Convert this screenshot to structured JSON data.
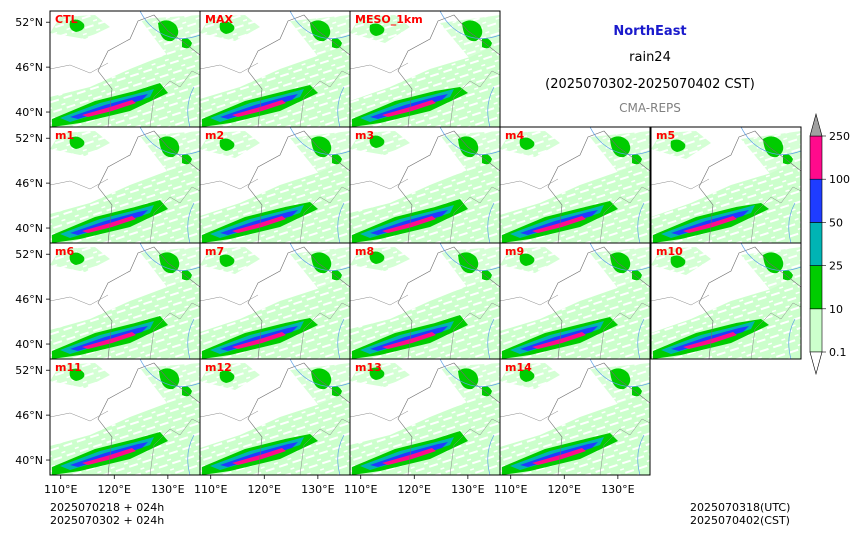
{
  "header": {
    "region": "NorthEast",
    "variable": "rain24",
    "period": "(2025070302-2025070402 CST)",
    "source": "CMA-REPS"
  },
  "footer": {
    "left_line1": "2025070218  +  024h",
    "left_line2": "2025070302  +  024h",
    "right_line1": "2025070318(UTC)",
    "right_line2": "2025070402(CST)"
  },
  "chart_data": {
    "type": "heatmap",
    "panel_labels": [
      "CTL",
      "MAX",
      "MESO_1km",
      "m1",
      "m2",
      "m3",
      "m4",
      "m5",
      "m6",
      "m7",
      "m8",
      "m9",
      "m10",
      "m11",
      "m12",
      "m13",
      "m14"
    ],
    "x_ticks": [
      110,
      120,
      130
    ],
    "x_tick_labels": [
      "110°E",
      "120°E",
      "130°E"
    ],
    "y_ticks": [
      40,
      46,
      52
    ],
    "y_tick_labels": [
      "40°N",
      "46°N",
      "52°N"
    ],
    "lon_range": [
      108,
      136
    ],
    "lat_range": [
      38,
      53.5
    ],
    "colorbar": {
      "levels": [
        0.1,
        10,
        25,
        50,
        100,
        250
      ],
      "level_labels": [
        "0.1",
        "10",
        "25",
        "50",
        "100",
        "250"
      ],
      "colors": [
        "#ccffcc",
        "#00cc00",
        "#00b4b4",
        "#1e3cff",
        "#ff0a8c",
        "#a0a0a0"
      ],
      "extend": "both"
    }
  }
}
